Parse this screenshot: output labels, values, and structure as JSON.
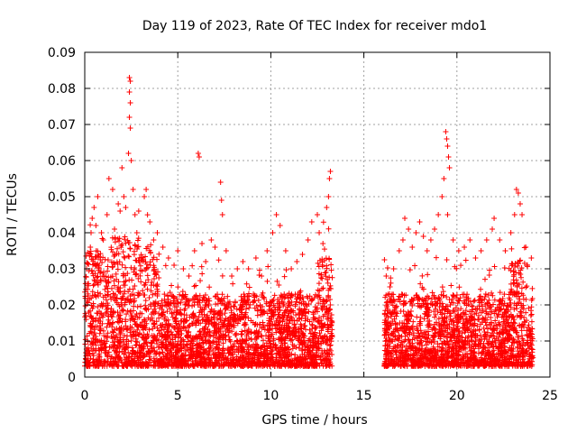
{
  "chart_data": {
    "type": "scatter",
    "title": "Day 119 of 2023, Rate Of TEC Index for receiver mdo1",
    "xlabel": "GPS time / hours",
    "ylabel": "ROTI / TECUs",
    "xlim": [
      0,
      25
    ],
    "ylim": [
      0,
      0.09
    ],
    "x_ticks": [
      "0",
      "5",
      "10",
      "15",
      "20",
      "25"
    ],
    "y_ticks": [
      "0",
      "0.01",
      "0.02",
      "0.03",
      "0.04",
      "0.05",
      "0.06",
      "0.07",
      "0.08",
      "0.09"
    ],
    "grid": true,
    "legend": "none",
    "marker": "+",
    "color": "#ff0000",
    "series": [
      {
        "values": [
          [
            0.1,
            0.03
          ],
          [
            0.3,
            0.036
          ],
          [
            0.4,
            0.044
          ],
          [
            0.5,
            0.047
          ],
          [
            0.6,
            0.042
          ],
          [
            0.7,
            0.05
          ],
          [
            0.9,
            0.04
          ],
          [
            1.0,
            0.038
          ],
          [
            1.2,
            0.045
          ],
          [
            1.3,
            0.055
          ],
          [
            1.5,
            0.052
          ],
          [
            1.6,
            0.041
          ],
          [
            1.8,
            0.048
          ],
          [
            1.9,
            0.046
          ],
          [
            2.0,
            0.058
          ],
          [
            2.1,
            0.05
          ],
          [
            2.2,
            0.047
          ],
          [
            2.35,
            0.062
          ],
          [
            2.4,
            0.083
          ],
          [
            2.45,
            0.082
          ],
          [
            2.4,
            0.079
          ],
          [
            2.45,
            0.076
          ],
          [
            2.4,
            0.072
          ],
          [
            2.45,
            0.069
          ],
          [
            2.5,
            0.06
          ],
          [
            2.6,
            0.052
          ],
          [
            2.7,
            0.045
          ],
          [
            2.8,
            0.04
          ],
          [
            2.9,
            0.046
          ],
          [
            3.2,
            0.05
          ],
          [
            3.3,
            0.052
          ],
          [
            3.5,
            0.043
          ],
          [
            3.7,
            0.038
          ],
          [
            3.9,
            0.04
          ],
          [
            4.2,
            0.036
          ],
          [
            4.5,
            0.033
          ],
          [
            4.8,
            0.031
          ],
          [
            5.0,
            0.035
          ],
          [
            5.3,
            0.03
          ],
          [
            5.6,
            0.028
          ],
          [
            5.9,
            0.035
          ],
          [
            6.1,
            0.062
          ],
          [
            6.15,
            0.061
          ],
          [
            6.3,
            0.037
          ],
          [
            6.5,
            0.032
          ],
          [
            6.8,
            0.038
          ],
          [
            7.0,
            0.036
          ],
          [
            7.3,
            0.054
          ],
          [
            7.35,
            0.049
          ],
          [
            7.4,
            0.045
          ],
          [
            7.6,
            0.035
          ],
          [
            7.9,
            0.028
          ],
          [
            8.2,
            0.03
          ],
          [
            8.5,
            0.032
          ],
          [
            8.8,
            0.03
          ],
          [
            9.2,
            0.033
          ],
          [
            9.5,
            0.028
          ],
          [
            9.8,
            0.035
          ],
          [
            10.1,
            0.04
          ],
          [
            10.3,
            0.045
          ],
          [
            10.5,
            0.042
          ],
          [
            10.8,
            0.035
          ],
          [
            11.1,
            0.03
          ],
          [
            11.4,
            0.032
          ],
          [
            11.7,
            0.034
          ],
          [
            12.0,
            0.038
          ],
          [
            12.2,
            0.043
          ],
          [
            12.5,
            0.045
          ],
          [
            12.6,
            0.04
          ],
          [
            12.8,
            0.037
          ],
          [
            13.0,
            0.047
          ],
          [
            13.1,
            0.05
          ],
          [
            13.15,
            0.055
          ],
          [
            13.2,
            0.057
          ],
          [
            16.2,
            0.028
          ],
          [
            16.4,
            0.025
          ],
          [
            16.6,
            0.03
          ],
          [
            16.9,
            0.035
          ],
          [
            17.1,
            0.038
          ],
          [
            17.2,
            0.044
          ],
          [
            17.4,
            0.041
          ],
          [
            17.6,
            0.036
          ],
          [
            17.8,
            0.04
          ],
          [
            18.0,
            0.043
          ],
          [
            18.2,
            0.039
          ],
          [
            18.4,
            0.035
          ],
          [
            18.6,
            0.038
          ],
          [
            18.8,
            0.041
          ],
          [
            19.0,
            0.045
          ],
          [
            19.2,
            0.05
          ],
          [
            19.3,
            0.055
          ],
          [
            19.4,
            0.068
          ],
          [
            19.45,
            0.066
          ],
          [
            19.5,
            0.064
          ],
          [
            19.55,
            0.061
          ],
          [
            19.6,
            0.058
          ],
          [
            19.5,
            0.045
          ],
          [
            19.8,
            0.038
          ],
          [
            20.1,
            0.035
          ],
          [
            20.4,
            0.036
          ],
          [
            20.7,
            0.038
          ],
          [
            21.0,
            0.033
          ],
          [
            21.3,
            0.035
          ],
          [
            21.6,
            0.038
          ],
          [
            21.9,
            0.041
          ],
          [
            22.0,
            0.044
          ],
          [
            22.3,
            0.038
          ],
          [
            22.6,
            0.035
          ],
          [
            22.9,
            0.04
          ],
          [
            23.1,
            0.045
          ],
          [
            23.2,
            0.052
          ],
          [
            23.3,
            0.051
          ],
          [
            23.4,
            0.048
          ],
          [
            23.5,
            0.045
          ],
          [
            23.7,
            0.036
          ],
          [
            24.0,
            0.033
          ]
        ]
      }
    ]
  }
}
